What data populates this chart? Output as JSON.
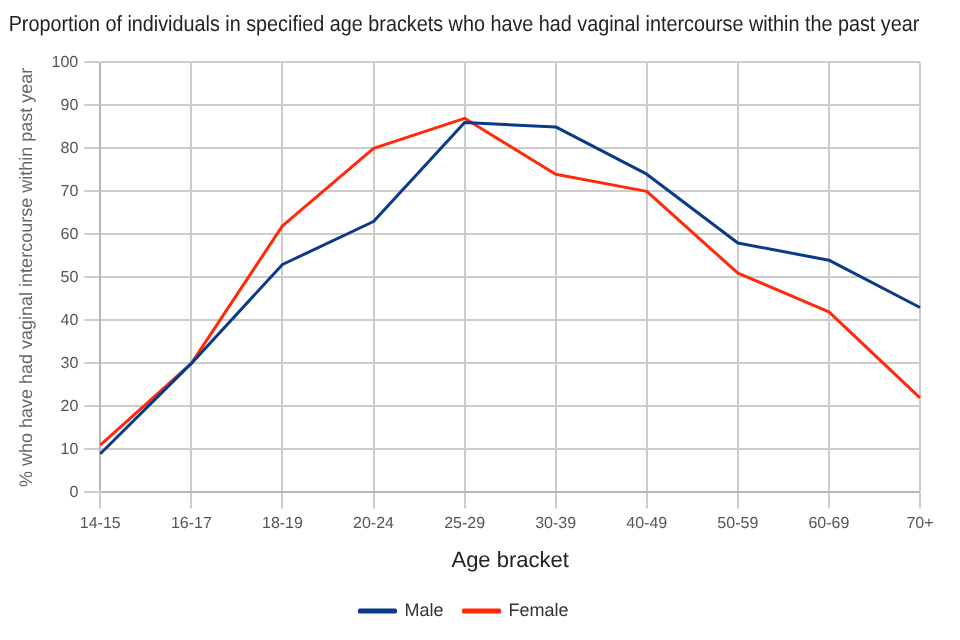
{
  "chart_data": {
    "type": "line",
    "title": "Proportion of individuals in specified age brackets who have had vaginal intercourse within the past year",
    "xlabel": "Age bracket",
    "ylabel": "% who have had vaginal intercourse within past year",
    "categories": [
      "14-15",
      "16-17",
      "18-19",
      "20-24",
      "25-29",
      "30-39",
      "40-49",
      "50-59",
      "60-69",
      "70+"
    ],
    "series": [
      {
        "name": "Male",
        "color": "#0a3a8a",
        "values": [
          9,
          30,
          53,
          63,
          86,
          85,
          74,
          58,
          54,
          43
        ]
      },
      {
        "name": "Female",
        "color": "#ff2a0a",
        "values": [
          11,
          30,
          62,
          80,
          87,
          74,
          70,
          51,
          42,
          22
        ]
      }
    ],
    "ylim": [
      0,
      100
    ],
    "yticks": [
      0,
      10,
      20,
      30,
      40,
      50,
      60,
      70,
      80,
      90,
      100
    ],
    "grid": true,
    "legend": "bottom",
    "marker": "none",
    "line_style": "solid"
  }
}
